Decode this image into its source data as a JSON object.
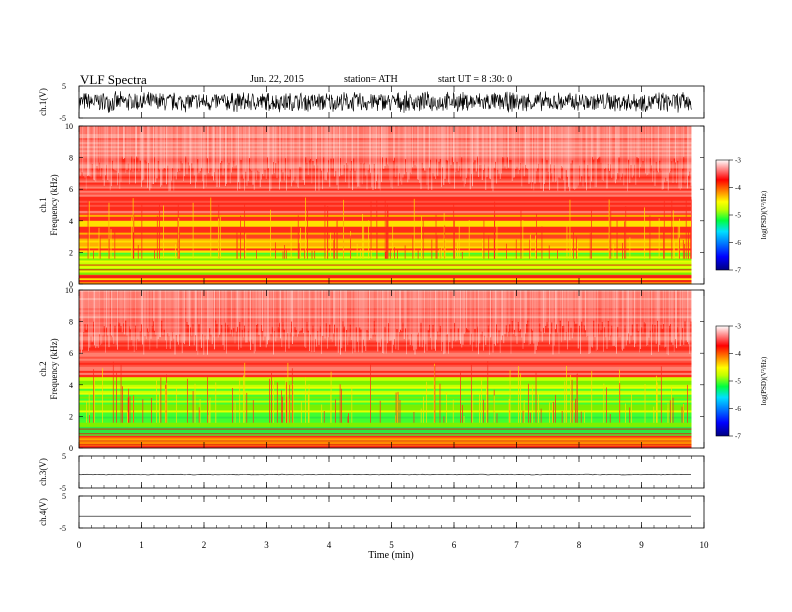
{
  "header": {
    "title": "VLF  Spectra",
    "date": "Jun. 22, 2015",
    "station": "station= ATH",
    "start_ut": "start  UT  =   8  :30: 0"
  },
  "colors": {
    "spectrogram_base": "#ff2a1a",
    "colorbar": [
      "#000080",
      "#0000ff",
      "#0080ff",
      "#00e0ff",
      "#00ff40",
      "#c0ff00",
      "#ffff00",
      "#ff8000",
      "#ff0000",
      "#ffffff"
    ]
  },
  "chart_data": [
    {
      "type": "line",
      "panel": "ch1-waveform",
      "ylabel": "ch.1(V)",
      "ylim": [
        -5,
        5
      ],
      "yticks": [
        "5",
        "-5"
      ],
      "description_values": {
        "amplitude_range": [
          -3.5,
          3.5
        ],
        "style": "dense noise"
      }
    },
    {
      "type": "heatmap",
      "panel": "ch1-spectrogram",
      "ylabel_lines": [
        "ch.1",
        "Frequency  (kHz)"
      ],
      "ylim": [
        0,
        10
      ],
      "yticks": [
        "0",
        "2",
        "4",
        "6",
        "8",
        "10"
      ],
      "colorbar": {
        "label": "log(PSD)(V²/Hz)",
        "range": [
          -7,
          -3
        ],
        "ticks": [
          "-3",
          "-4",
          "-5",
          "-6",
          "-7"
        ]
      },
      "bands": [
        {
          "f_low": 0,
          "f_high": 0.6,
          "level": "yellow-red lines"
        },
        {
          "f_low": 0.6,
          "f_high": 2.0,
          "level": "green/yellow"
        },
        {
          "f_low": 2.0,
          "f_high": 4.5,
          "level": "yellow/red"
        },
        {
          "f_low": 4.5,
          "f_high": 10,
          "level": "red-white"
        }
      ]
    },
    {
      "type": "heatmap",
      "panel": "ch2-spectrogram",
      "ylabel_lines": [
        "ch.2",
        "Frequency  (kHz)"
      ],
      "ylim": [
        0,
        10
      ],
      "yticks": [
        "0",
        "2",
        "4",
        "6",
        "8",
        "10"
      ],
      "colorbar": {
        "label": "log(PSD)(V²/Hz)",
        "range": [
          -7,
          -3
        ],
        "ticks": [
          "-3",
          "-4",
          "-5",
          "-6",
          "-7"
        ]
      },
      "bands": [
        {
          "f_low": 0,
          "f_high": 0.8,
          "level": "yellow-red lines"
        },
        {
          "f_low": 0.8,
          "f_high": 2.0,
          "level": "green"
        },
        {
          "f_low": 2.0,
          "f_high": 4.5,
          "level": "green/yellow"
        },
        {
          "f_low": 4.5,
          "f_high": 10,
          "level": "red-white"
        }
      ]
    },
    {
      "type": "line",
      "panel": "ch3-waveform",
      "ylabel": "ch.3(V)",
      "ylim": [
        -5,
        5
      ],
      "yticks": [
        "5",
        "-5"
      ],
      "description_values": {
        "level": -0.8,
        "style": "nearly flat"
      }
    },
    {
      "type": "line",
      "panel": "ch4-waveform",
      "ylabel": "ch.4(V)",
      "ylim": [
        -5,
        5
      ],
      "yticks": [
        "5",
        "-5"
      ],
      "description_values": {
        "level": -1.3,
        "style": "flat"
      }
    }
  ],
  "xaxis": {
    "label": "Time  (min)",
    "xlim": [
      0,
      10
    ],
    "ticks": [
      "0",
      "1",
      "2",
      "3",
      "4",
      "5",
      "6",
      "7",
      "8",
      "9",
      "10"
    ],
    "data_end": 9.8
  }
}
